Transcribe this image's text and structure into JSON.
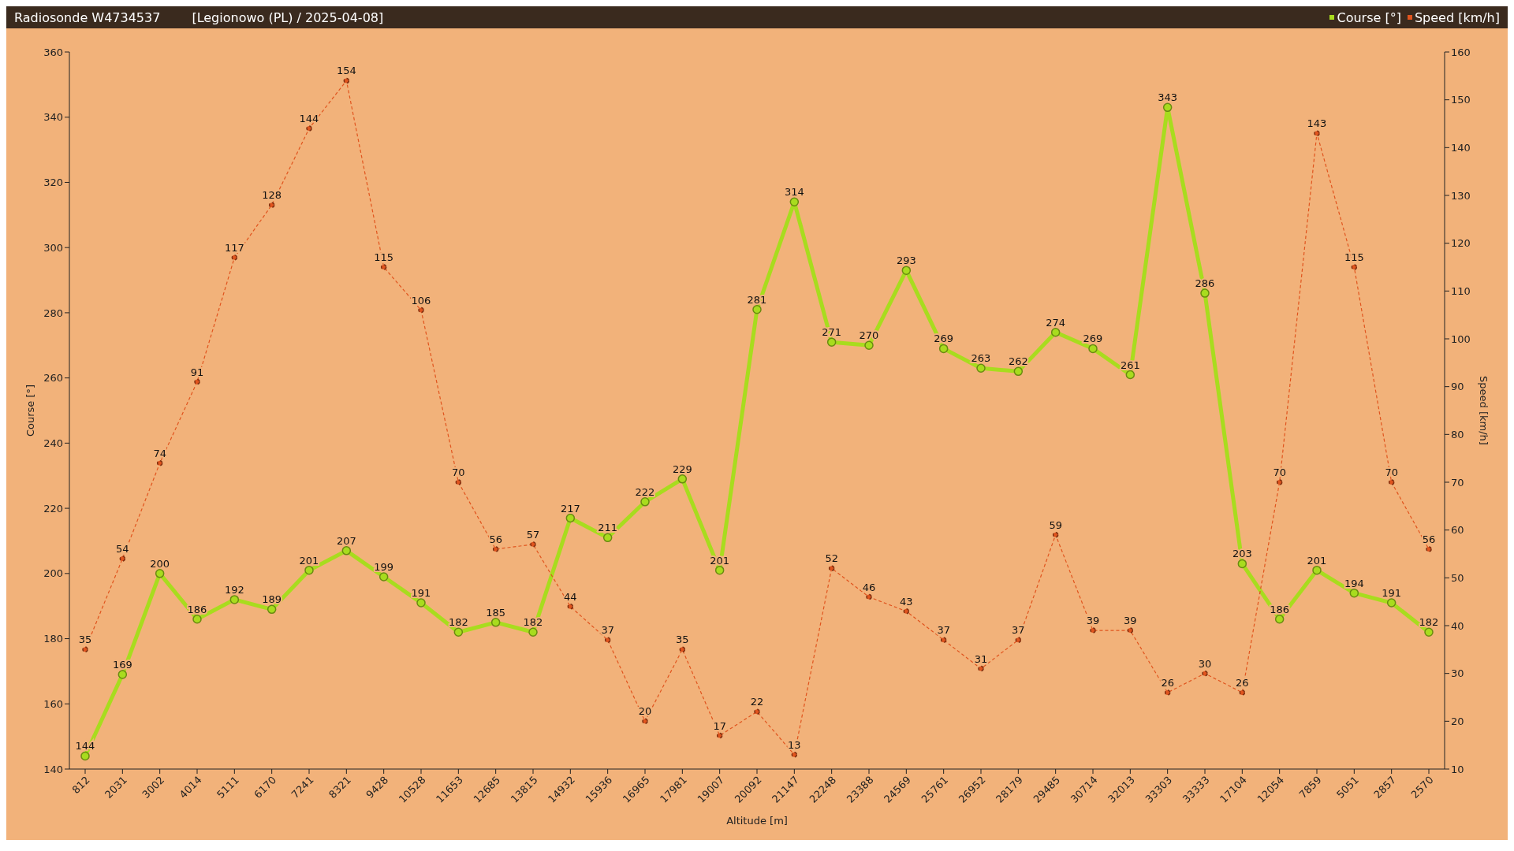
{
  "chart_data": {
    "type": "line",
    "title": "Radiosonde W4734537",
    "subtitle": "[Legionowo (PL) / 2025-04-08]",
    "xlabel": "Altitude [m]",
    "ylabel": "Course [°]",
    "y2label": "Speed [km/h]",
    "categories": [
      "812",
      "2031",
      "3002",
      "4014",
      "5111",
      "6170",
      "7241",
      "8321",
      "9428",
      "10528",
      "11653",
      "12685",
      "13815",
      "14932",
      "15936",
      "16965",
      "17981",
      "19007",
      "20092",
      "21147",
      "22248",
      "23388",
      "24569",
      "25761",
      "26952",
      "28179",
      "29485",
      "30714",
      "32013",
      "33303",
      "33333",
      "17104",
      "12054",
      "7859",
      "5051",
      "2857",
      "2570"
    ],
    "series": [
      {
        "name": "Course [°]",
        "color": "#a8dc1e",
        "line_style": "solid",
        "values": [
          144,
          169,
          200,
          186,
          192,
          189,
          201,
          207,
          199,
          191,
          182,
          185,
          182,
          217,
          211,
          222,
          229,
          201,
          281,
          314,
          271,
          270,
          293,
          269,
          263,
          262,
          274,
          269,
          261,
          343,
          286,
          203,
          186,
          201,
          194,
          191,
          182
        ]
      },
      {
        "name": "Speed [km/h]",
        "color": "#e0541e",
        "axis": "y2",
        "line_style": "dashed",
        "values": [
          35,
          54,
          74,
          91,
          117,
          128,
          144,
          154,
          115,
          106,
          70,
          56,
          57,
          44,
          37,
          20,
          35,
          17,
          22,
          13,
          52,
          46,
          43,
          37,
          31,
          37,
          59,
          39,
          39,
          26,
          30,
          26,
          70,
          143,
          115,
          70,
          56
        ]
      }
    ],
    "ylim": [
      140,
      360
    ],
    "yticks": [
      140,
      160,
      180,
      200,
      220,
      240,
      260,
      280,
      300,
      320,
      340,
      360
    ],
    "y2lim": [
      10,
      160
    ],
    "y2ticks": [
      10,
      20,
      30,
      40,
      50,
      60,
      70,
      80,
      90,
      100,
      110,
      120,
      130,
      140,
      150,
      160
    ],
    "marker": "circle",
    "data_labels": true,
    "grid": false,
    "legend": "top right"
  }
}
